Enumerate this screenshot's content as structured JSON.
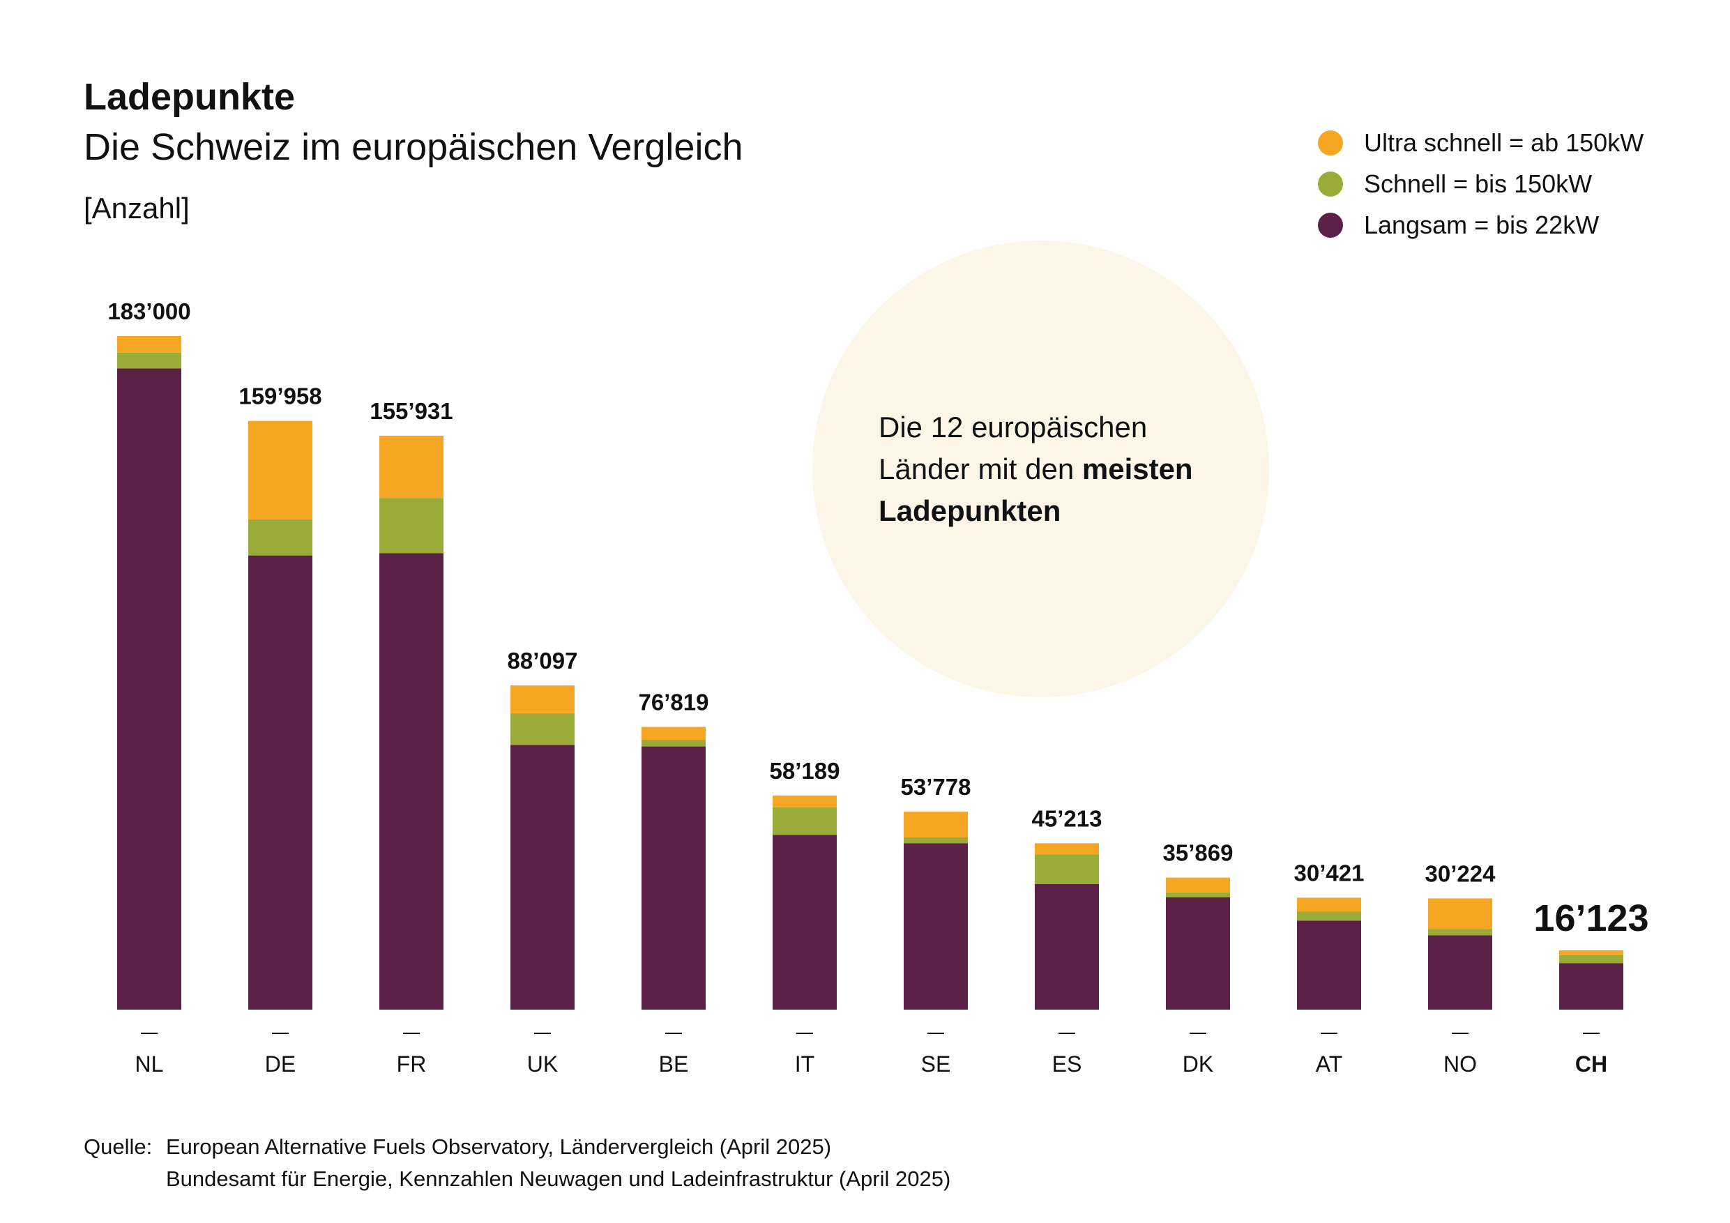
{
  "header": {
    "title": "Ladepunkte",
    "subtitle": "Die Schweiz im europäischen Vergleich",
    "unit": "[Anzahl]"
  },
  "legend": [
    {
      "label": "Ultra schnell = ab 150kW",
      "color": "#f5a623"
    },
    {
      "label": "Schnell = bis 150kW",
      "color": "#9aab3a"
    },
    {
      "label": "Langsam = bis 22kW",
      "color": "#5a2045"
    }
  ],
  "callout": {
    "line1": "Die 12 europäischen",
    "line2_pre": "Länder mit den ",
    "line2_bold": "meisten",
    "line3_bold": "Ladepunkten"
  },
  "source": {
    "label": "Quelle:",
    "line1": "European Alternative Fuels Observatory, Ländervergleich (April 2025)",
    "line2": "Bundesamt für Energie, Kennzahlen Neuwagen und Ladeinfrastruktur (April 2025)"
  },
  "chart_data": {
    "type": "bar",
    "stacked": true,
    "title": "Ladepunkte",
    "subtitle": "Die Schweiz im europäischen Vergleich",
    "ylabel": "[Anzahl]",
    "ylim": [
      0,
      183000
    ],
    "grid": false,
    "legend_position": "top-right",
    "categories": [
      "NL",
      "DE",
      "FR",
      "UK",
      "BE",
      "IT",
      "SE",
      "ES",
      "DK",
      "AT",
      "NO",
      "CH"
    ],
    "highlight": "CH",
    "totals": [
      "183’000",
      "159’958",
      "155’931",
      "88’097",
      "76’819",
      "58’189",
      "53’778",
      "45’213",
      "35’869",
      "30’421",
      "30’224",
      "16’123"
    ],
    "series": [
      {
        "name": "Langsam = bis 22kW",
        "color": "#5a2045",
        "values": [
          174200,
          123400,
          124000,
          71900,
          71500,
          47500,
          45200,
          34100,
          30500,
          24200,
          20200,
          12600
        ]
      },
      {
        "name": "Schnell = bis 150kW",
        "color": "#9aab3a",
        "values": [
          4300,
          9800,
          15000,
          8600,
          1800,
          7500,
          1600,
          8100,
          1300,
          2500,
          1700,
          2200
        ]
      },
      {
        "name": "Ultra schnell = ab 150kW",
        "color": "#f5a623",
        "values": [
          4500,
          26758,
          16931,
          7597,
          3519,
          3189,
          6978,
          3013,
          4069,
          3721,
          8324,
          1323
        ]
      }
    ]
  }
}
